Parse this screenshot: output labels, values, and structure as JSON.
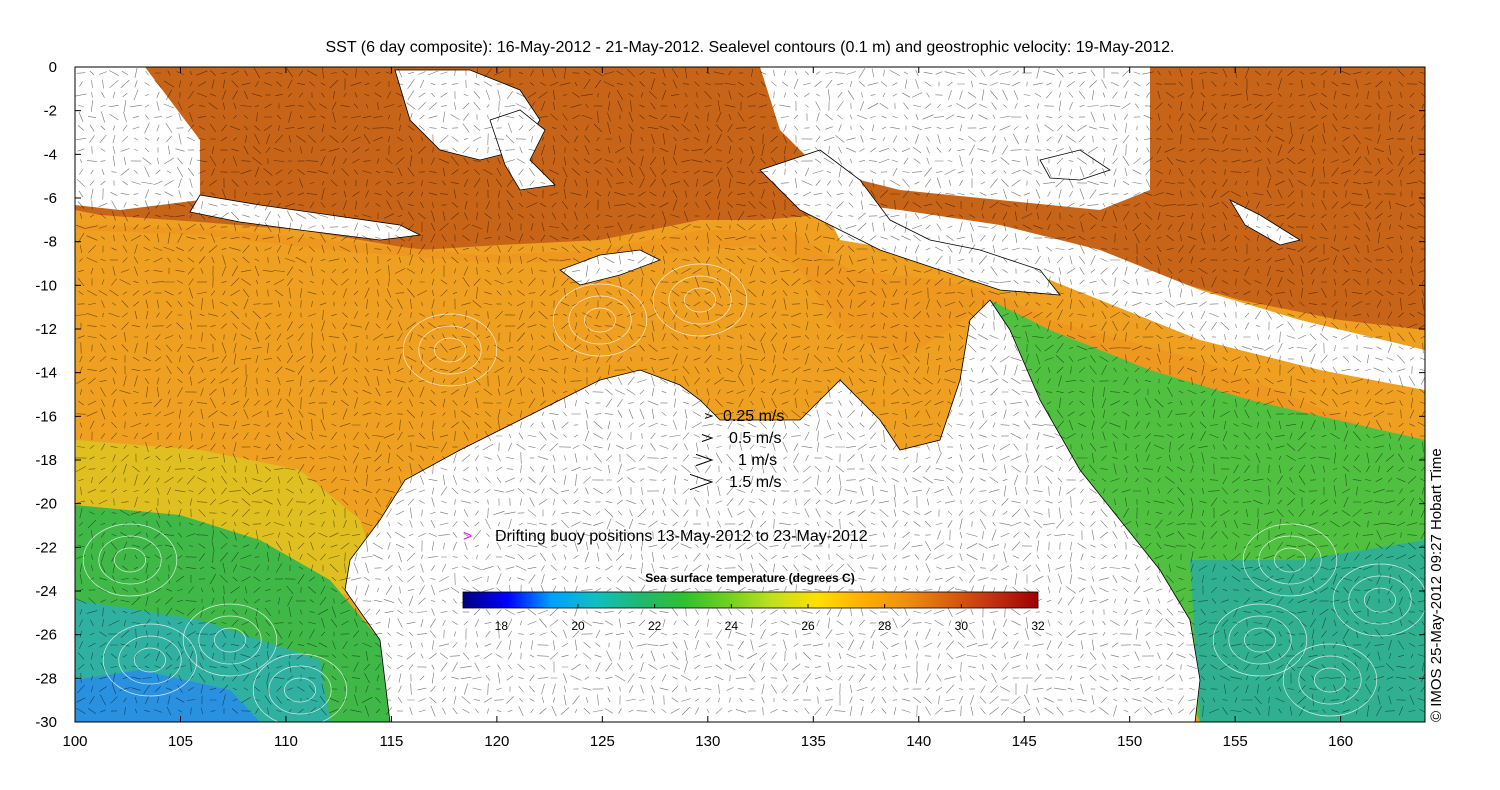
{
  "title": "SST (6 day composite): 16-May-2012 - 21-May-2012. Sealevel contours (0.1 m) and geostrophic velocity: 19-May-2012.",
  "credit": "© IMOS 25-May-2012 09:27 Hobart Time",
  "axes": {
    "x_ticks": [
      "100",
      "105",
      "110",
      "115",
      "120",
      "125",
      "130",
      "135",
      "140",
      "145",
      "150",
      "155",
      "160"
    ],
    "y_ticks": [
      "0",
      "-2",
      "-4",
      "-6",
      "-8",
      "-10",
      "-12",
      "-14",
      "-16",
      "-18",
      "-20",
      "-22",
      "-24",
      "-26",
      "-28",
      "-30"
    ],
    "x_range": [
      100,
      164
    ],
    "y_range": [
      -30,
      0
    ]
  },
  "velocity_legend": [
    {
      "label": "0.25 m/s",
      "speed": 0.25
    },
    {
      "label": "0.5 m/s",
      "speed": 0.5
    },
    {
      "label": "1 m/s",
      "speed": 1
    },
    {
      "label": "1.5 m/s",
      "speed": 1.5
    }
  ],
  "buoy_legend": {
    "marker": ">",
    "label": "Drifting buoy positions 13-May-2012 to 23-May-2012",
    "color": "#e020e0"
  },
  "colorbar": {
    "title": "Sea surface temperature (degrees C)",
    "ticks": [
      "18",
      "20",
      "22",
      "24",
      "26",
      "28",
      "30",
      "32"
    ],
    "range": [
      17,
      32
    ],
    "colors": [
      "#00007f",
      "#0000ff",
      "#00a0ff",
      "#10c0c0",
      "#20b870",
      "#30c030",
      "#70d020",
      "#c0e020",
      "#ffe000",
      "#ffb000",
      "#f09010",
      "#d86010",
      "#c03010",
      "#a00000"
    ]
  },
  "colors": {
    "land": "#ffffff",
    "cloud": "#ffffff",
    "warm": "#c8601a",
    "orange": "#f0a020",
    "yellow": "#e8d020",
    "green": "#40c040",
    "teal": "#30b0a0",
    "cool": "#2090e0"
  }
}
